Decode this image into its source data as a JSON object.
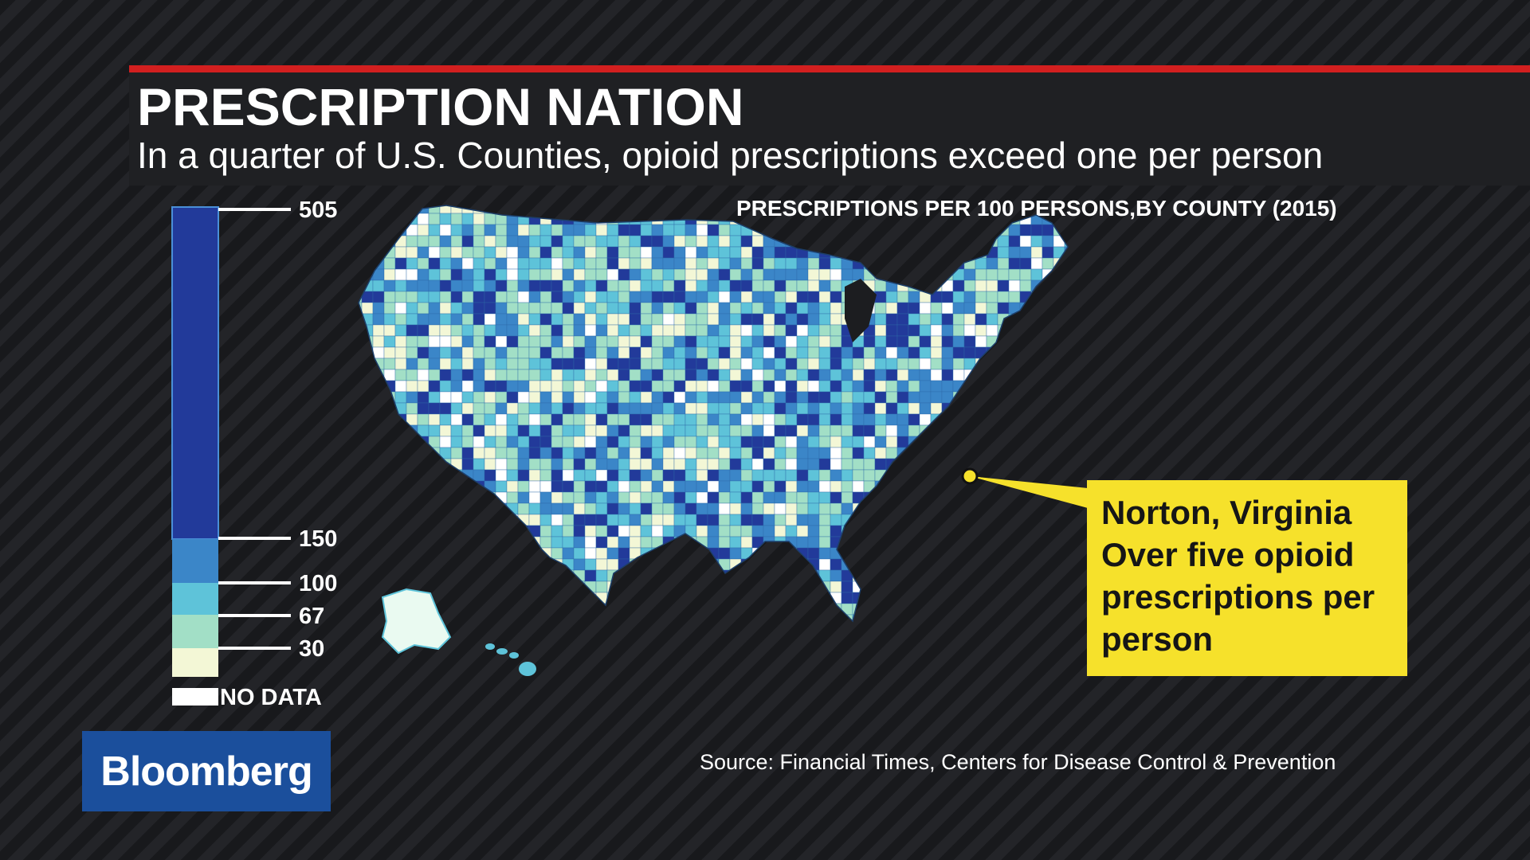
{
  "header": {
    "title": "PRESCRIPTION NATION",
    "subtitle": "In a quarter of U.S. Counties, opioid prescriptions exceed one per person"
  },
  "map": {
    "title": "PRESCRIPTIONS PER 100 PERSONS,BY COUNTY (2015)",
    "region": "United States counties",
    "highlight": "Norton, Virginia"
  },
  "legend": {
    "ticks": [
      "505",
      "150",
      "100",
      "67",
      "30"
    ],
    "no_data_label": "NO DATA",
    "colors": [
      "#223a9a",
      "#3b86c8",
      "#5ec3d9",
      "#a2dfc6",
      "#f3f7d6",
      "#ffffff"
    ]
  },
  "callout": {
    "lines": [
      "Norton, Virginia",
      "Over five opioid",
      "prescriptions per",
      "person"
    ]
  },
  "source": "Source: Financial Times, Centers for Disease Control & Prevention",
  "brand": {
    "logo": "Bloomberg"
  },
  "colors": {
    "accent_red": "#d21f1f",
    "callout_yellow": "#f6e12b",
    "logo_blue": "#1b4f9c"
  }
}
